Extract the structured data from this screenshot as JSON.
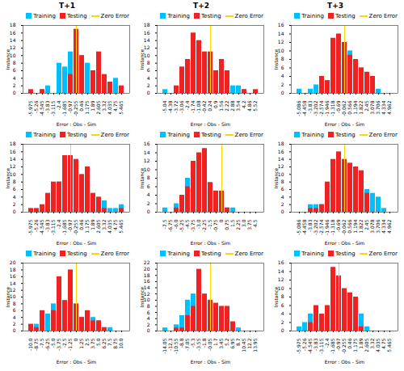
{
  "chart_data": [
    {
      "type": "bar",
      "title": "T+1",
      "xlabel": "Error : Obs - Sim",
      "ylabel": "Instance",
      "categories": [
        "-5.975",
        "-5.26",
        "-4.545",
        "-3.83",
        "-3.115",
        "-2.4",
        "-1.685",
        "-0.97",
        "-0.255",
        "0.46",
        "1.175",
        "1.89",
        "2.605",
        "3.32",
        "4.035",
        "4.75",
        "5.465"
      ],
      "series": [
        {
          "name": "Training",
          "color": "#00BFFF",
          "values": [
            0,
            0,
            1,
            2,
            0,
            8,
            7,
            11,
            11,
            10,
            8,
            6,
            3,
            3,
            1,
            4,
            0
          ]
        },
        {
          "name": "Testing",
          "color": "#EE2222",
          "values": [
            1,
            0,
            1,
            0,
            0,
            0,
            0,
            5,
            17,
            10,
            0,
            6,
            11,
            5,
            3,
            0,
            2
          ]
        }
      ],
      "vlines": [
        {
          "name": "Zero Error",
          "color": "#FFD700",
          "x": "-0.255"
        }
      ],
      "ylim": [
        0,
        18
      ],
      "yticks": [
        0,
        2,
        4,
        6,
        8,
        10,
        12,
        14,
        16,
        18
      ],
      "legend": "upper right",
      "grid": false
    },
    {
      "type": "bar",
      "title": "T+2",
      "xlabel": "Error : Obs - Sim",
      "ylabel": "Instance",
      "categories": [
        "-5.04",
        "-4.38",
        "-3.72",
        "-3.06",
        "-2.4",
        "-1.74",
        "-1.08",
        "-0.42",
        "0.24",
        "0.9",
        "1.56",
        "2.22",
        "2.88",
        "3.54",
        "4.2",
        "4.86",
        "5.52"
      ],
      "series": [
        {
          "name": "Training",
          "color": "#00BFFF",
          "values": [
            1,
            0,
            1,
            5,
            5,
            12,
            6,
            7,
            7,
            4,
            7,
            2,
            2,
            2,
            1,
            0,
            0
          ]
        },
        {
          "name": "Testing",
          "color": "#EE2222",
          "values": [
            0,
            0,
            2,
            7,
            9,
            16,
            14,
            11,
            11,
            6,
            9,
            6,
            0,
            0,
            1,
            0,
            1
          ]
        }
      ],
      "vlines": [
        {
          "name": "Zero Error",
          "color": "#FFD700",
          "x": "0.24"
        }
      ],
      "ylim": [
        0,
        18
      ],
      "yticks": [
        0,
        2,
        4,
        6,
        8,
        10,
        12,
        14,
        16,
        18
      ],
      "legend": "upper right",
      "grid": false
    },
    {
      "type": "bar",
      "title": "T+3",
      "xlabel": "Error : Obs - Sim",
      "ylabel": "Instance",
      "categories": [
        "-5.086",
        "-4.458",
        "-3.83",
        "-3.202",
        "-2.574",
        "-1.946",
        "-1.318",
        "-0.69",
        "-0.062",
        "0.566",
        "1.194",
        "1.822",
        "2.45",
        "3.078",
        "3.706",
        "4.334",
        "4.962"
      ],
      "series": [
        {
          "name": "Training",
          "color": "#00BFFF",
          "values": [
            1,
            0,
            1,
            2,
            4,
            3,
            6,
            8,
            9,
            10,
            8,
            6,
            4,
            1,
            1,
            0,
            0
          ]
        },
        {
          "name": "Testing",
          "color": "#EE2222",
          "values": [
            0,
            0,
            0,
            0,
            4,
            3,
            13,
            14,
            12,
            9,
            8,
            6,
            5,
            4,
            0,
            0,
            0
          ]
        }
      ],
      "vlines": [
        {
          "name": "Zero Error",
          "color": "#FFD700",
          "x": "-0.062"
        }
      ],
      "ylim": [
        0,
        16
      ],
      "yticks": [
        0,
        2,
        4,
        6,
        8,
        10,
        12,
        14,
        16
      ],
      "legend": "upper right",
      "grid": false
    },
    {
      "type": "bar",
      "xlabel": "Error : Obs - Sim",
      "ylabel": "Instance",
      "categories": [
        "-5.975",
        "-5.26",
        "-4.545",
        "-3.83",
        "-3.115",
        "-2.4",
        "-1.685",
        "-0.97",
        "-0.255",
        "0.46",
        "1.175",
        "1.89",
        "2.605",
        "3.32",
        "4.035",
        "4.75",
        "5.465"
      ],
      "series": [
        {
          "name": "Training",
          "color": "#00BFFF",
          "values": [
            0,
            0,
            1,
            2,
            5,
            8,
            9,
            12,
            9,
            9,
            8,
            4,
            3,
            3,
            1,
            1,
            2
          ]
        },
        {
          "name": "Testing",
          "color": "#EE2222",
          "values": [
            1,
            1,
            2,
            5,
            8,
            8,
            15,
            15,
            14,
            10,
            12,
            5,
            4,
            1,
            0,
            0,
            1
          ]
        }
      ],
      "vlines": [
        {
          "name": "Zero Error",
          "color": "#FFD700",
          "x": "-0.97"
        }
      ],
      "ylim": [
        0,
        18
      ],
      "yticks": [
        0,
        2,
        4,
        6,
        8,
        10,
        12,
        14,
        16,
        18
      ],
      "legend": "upper right",
      "grid": false
    },
    {
      "type": "bar",
      "xlabel": "Error : Obs - Sim",
      "ylabel": "Instance",
      "categories": [
        "-7.5",
        "-6.75",
        "-6.0",
        "-5.25",
        "-4.5",
        "-3.75",
        "-3.0",
        "-2.25",
        "-1.5",
        "-0.75",
        "0",
        "0.75",
        "1.5",
        "2.25",
        "3.0",
        "3.75",
        "4.5"
      ],
      "series": [
        {
          "name": "Training",
          "color": "#00BFFF",
          "values": [
            1,
            0,
            2,
            4,
            8,
            8,
            11,
            8,
            6,
            3,
            2,
            1,
            1,
            0,
            0,
            0,
            0
          ]
        },
        {
          "name": "Testing",
          "color": "#EE2222",
          "values": [
            0,
            0,
            1,
            4,
            6,
            12,
            14,
            15,
            7,
            5,
            5,
            1,
            0,
            0,
            0,
            0,
            0
          ]
        }
      ],
      "vlines": [
        {
          "name": "Zero Error",
          "color": "#FFD700",
          "x": "0"
        }
      ],
      "ylim": [
        0,
        16
      ],
      "yticks": [
        0,
        2,
        4,
        6,
        8,
        10,
        12,
        14,
        16
      ],
      "legend": "upper right",
      "grid": false
    },
    {
      "type": "bar",
      "xlabel": "Error : Obs - Sim",
      "ylabel": "Instance",
      "categories": [
        "-5.086",
        "-4.458",
        "-3.83",
        "-3.202",
        "-2.574",
        "-1.946",
        "-1.318",
        "-0.69",
        "-0.062",
        "0.566",
        "1.194",
        "1.822",
        "2.45",
        "3.078",
        "3.706",
        "4.334",
        "4.962"
      ],
      "series": [
        {
          "name": "Training",
          "color": "#00BFFF",
          "values": [
            0,
            0,
            2,
            2,
            2,
            3,
            5,
            8,
            8,
            10,
            11,
            9,
            6,
            5,
            4,
            1,
            0
          ]
        },
        {
          "name": "Testing",
          "color": "#EE2222",
          "values": [
            0,
            0,
            1,
            1,
            2,
            8,
            14,
            16,
            14,
            13,
            12,
            11,
            5,
            0,
            0,
            0,
            0
          ]
        }
      ],
      "vlines": [
        {
          "name": "Zero Error",
          "color": "#FFD700",
          "x": "-0.062"
        }
      ],
      "ylim": [
        0,
        18
      ],
      "yticks": [
        0,
        2,
        4,
        6,
        8,
        10,
        12,
        14,
        16,
        18
      ],
      "legend": "upper right",
      "grid": false
    },
    {
      "type": "bar",
      "xlabel": "Error : Obs - Sim",
      "ylabel": "Instance",
      "categories": [
        "-10.0",
        "-8.75",
        "-7.5",
        "-6.25",
        "-5.0",
        "-3.75",
        "-2.5",
        "-1.25",
        "0",
        "1.25",
        "2.5",
        "3.75",
        "5.0",
        "6.25",
        "7.5",
        "8.75",
        "10.0"
      ],
      "series": [
        {
          "name": "Training",
          "color": "#00BFFF",
          "values": [
            0,
            2,
            4,
            5,
            8,
            8,
            5,
            5,
            5,
            4,
            5,
            4,
            3,
            1,
            1,
            0,
            0
          ]
        },
        {
          "name": "Testing",
          "color": "#EE2222",
          "values": [
            2,
            1,
            6,
            0,
            6,
            16,
            9,
            18,
            8,
            4,
            6,
            3,
            3,
            1,
            0,
            0,
            0
          ]
        }
      ],
      "vlines": [
        {
          "name": "Zero Error",
          "color": "#FFD700",
          "x": "0"
        }
      ],
      "ylim": [
        0,
        20
      ],
      "yticks": [
        0,
        2,
        4,
        6,
        8,
        10,
        12,
        14,
        16,
        18,
        20
      ],
      "legend": "upper right",
      "grid": false
    },
    {
      "type": "bar",
      "xlabel": "Error : Obs - Sim",
      "ylabel": "Instance",
      "categories": [
        "-14.05",
        "-12.3",
        "-10.55",
        "-8.8",
        "-7.05",
        "-5.3",
        "-3.55",
        "-1.8",
        "-0.05",
        "1.7",
        "3.45",
        "5.2",
        "6.95",
        "8.7",
        "10.45",
        "12.2",
        "13.95"
      ],
      "series": [
        {
          "name": "Training",
          "color": "#00BFFF",
          "values": [
            1,
            0,
            2,
            5,
            10,
            12,
            14,
            10,
            9,
            8,
            5,
            3,
            1,
            1,
            0,
            0,
            0
          ]
        },
        {
          "name": "Testing",
          "color": "#EE2222",
          "values": [
            0,
            0,
            1,
            1,
            5,
            8,
            20,
            12,
            10,
            9,
            8,
            8,
            3,
            0,
            0,
            0,
            0
          ]
        }
      ],
      "vlines": [
        {
          "name": "Zero Error",
          "color": "#FFD700",
          "x": "-0.05"
        }
      ],
      "ylim": [
        0,
        22
      ],
      "yticks": [
        0,
        2,
        4,
        6,
        8,
        10,
        12,
        14,
        16,
        18,
        20,
        22
      ],
      "legend": "upper right",
      "grid": false
    },
    {
      "type": "bar",
      "xlabel": "Error : Obs - Sim",
      "ylabel": "Instance",
      "categories": [
        "-5.975",
        "-5.26",
        "-4.545",
        "-3.83",
        "-3.115",
        "-2.4",
        "-1.685",
        "-0.97",
        "-0.255",
        "0.46",
        "1.175",
        "1.89",
        "2.605",
        "3.32",
        "4.035",
        "4.75",
        "5.465"
      ],
      "series": [
        {
          "name": "Training",
          "color": "#00BFFF",
          "values": [
            1,
            2,
            4,
            3,
            4,
            5,
            6,
            9,
            9,
            7,
            4,
            4,
            1,
            0,
            0,
            0,
            0
          ]
        },
        {
          "name": "Testing",
          "color": "#EE2222",
          "values": [
            0,
            0,
            2,
            6,
            4,
            6,
            15,
            13,
            10,
            9,
            8,
            1,
            0,
            0,
            0,
            0,
            0
          ]
        }
      ],
      "vlines": [
        {
          "name": "Zero Error",
          "color": "#FFD700",
          "x": "-0.97"
        }
      ],
      "ylim": [
        0,
        16
      ],
      "yticks": [
        0,
        2,
        4,
        6,
        8,
        10,
        12,
        14,
        16
      ],
      "legend": "upper right",
      "grid": false
    }
  ]
}
